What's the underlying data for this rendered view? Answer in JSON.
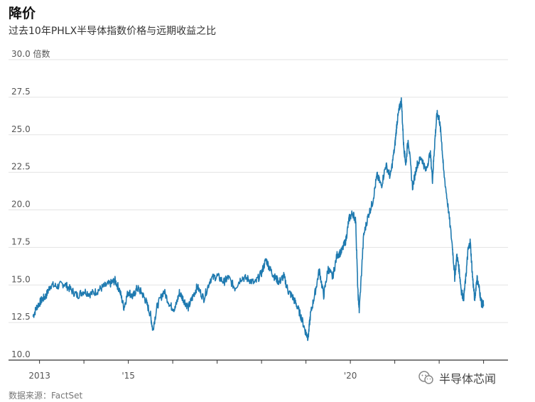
{
  "title": "降价",
  "subtitle": "过去10年PHLX半导体指数价格与远期收益之比",
  "source": "数据来源：FactSet",
  "watermark": "半导体芯闻",
  "colors": {
    "line": "#1f7ab0",
    "grid": "#e3e3e3",
    "axis": "#333333"
  },
  "chart_data": {
    "type": "line",
    "title": "降价",
    "subtitle": "过去10年PHLX半导体指数价格与远期收益之比",
    "ylabel": "倍数",
    "ylim": [
      10.0,
      30.0
    ],
    "yticks": [
      10.0,
      12.5,
      15.0,
      17.5,
      20.0,
      22.5,
      25.0,
      27.5,
      30.0
    ],
    "ytick_labels": [
      "10.0",
      "12.5",
      "15.0",
      "17.5",
      "20.0",
      "22.5",
      "25.0",
      "27.5",
      "30.0 倍数"
    ],
    "xlim": [
      2012.75,
      2023.55
    ],
    "xtick_positions": [
      2013,
      2014,
      2015,
      2016,
      2017,
      2018,
      2019,
      2020,
      2021,
      2022,
      2023
    ],
    "xtick_labels": [
      {
        "x": 2013,
        "label": "2013"
      },
      {
        "x": 2015,
        "label": "'15"
      },
      {
        "x": 2020,
        "label": "'20"
      }
    ],
    "grid": true,
    "series": [
      {
        "points": [
          [
            2012.85,
            12.9
          ],
          [
            2012.95,
            13.6
          ],
          [
            2013.05,
            14.0
          ],
          [
            2013.15,
            14.3
          ],
          [
            2013.25,
            15.0
          ],
          [
            2013.4,
            14.9
          ],
          [
            2013.55,
            15.1
          ],
          [
            2013.7,
            14.7
          ],
          [
            2013.85,
            14.3
          ],
          [
            2014.0,
            14.6
          ],
          [
            2014.15,
            14.4
          ],
          [
            2014.3,
            14.6
          ],
          [
            2014.45,
            14.9
          ],
          [
            2014.6,
            15.1
          ],
          [
            2014.7,
            15.3
          ],
          [
            2014.8,
            14.7
          ],
          [
            2014.9,
            13.5
          ],
          [
            2015.0,
            14.6
          ],
          [
            2015.1,
            14.2
          ],
          [
            2015.2,
            14.8
          ],
          [
            2015.3,
            14.5
          ],
          [
            2015.4,
            13.9
          ],
          [
            2015.5,
            13.0
          ],
          [
            2015.55,
            12.0
          ],
          [
            2015.65,
            13.6
          ],
          [
            2015.8,
            14.6
          ],
          [
            2015.95,
            13.6
          ],
          [
            2016.05,
            13.4
          ],
          [
            2016.15,
            14.5
          ],
          [
            2016.25,
            14.0
          ],
          [
            2016.35,
            13.5
          ],
          [
            2016.45,
            14.2
          ],
          [
            2016.55,
            14.9
          ],
          [
            2016.7,
            14.1
          ],
          [
            2016.85,
            15.4
          ],
          [
            2017.0,
            15.6
          ],
          [
            2017.15,
            15.2
          ],
          [
            2017.25,
            15.5
          ],
          [
            2017.4,
            14.8
          ],
          [
            2017.55,
            15.5
          ],
          [
            2017.7,
            15.4
          ],
          [
            2017.85,
            15.1
          ],
          [
            2018.0,
            15.8
          ],
          [
            2018.1,
            16.7
          ],
          [
            2018.2,
            16.0
          ],
          [
            2018.3,
            15.5
          ],
          [
            2018.4,
            15.2
          ],
          [
            2018.5,
            15.6
          ],
          [
            2018.6,
            14.6
          ],
          [
            2018.7,
            14.2
          ],
          [
            2018.8,
            13.6
          ],
          [
            2018.9,
            12.8
          ],
          [
            2019.0,
            11.8
          ],
          [
            2019.05,
            11.5
          ],
          [
            2019.1,
            13.0
          ],
          [
            2019.2,
            14.4
          ],
          [
            2019.3,
            16.0
          ],
          [
            2019.4,
            14.3
          ],
          [
            2019.5,
            16.1
          ],
          [
            2019.6,
            15.5
          ],
          [
            2019.7,
            17.0
          ],
          [
            2019.8,
            17.2
          ],
          [
            2019.9,
            18.0
          ],
          [
            2019.97,
            19.4
          ],
          [
            2020.05,
            19.8
          ],
          [
            2020.12,
            19.3
          ],
          [
            2020.17,
            14.5
          ],
          [
            2020.2,
            13.3
          ],
          [
            2020.3,
            18.3
          ],
          [
            2020.4,
            19.6
          ],
          [
            2020.5,
            20.5
          ],
          [
            2020.6,
            22.3
          ],
          [
            2020.7,
            21.6
          ],
          [
            2020.8,
            23.0
          ],
          [
            2020.9,
            22.2
          ],
          [
            2021.0,
            24.2
          ],
          [
            2021.05,
            25.8
          ],
          [
            2021.1,
            26.7
          ],
          [
            2021.15,
            27.3
          ],
          [
            2021.2,
            24.3
          ],
          [
            2021.25,
            23.0
          ],
          [
            2021.3,
            24.8
          ],
          [
            2021.4,
            21.5
          ],
          [
            2021.5,
            23.0
          ],
          [
            2021.6,
            23.5
          ],
          [
            2021.7,
            22.6
          ],
          [
            2021.8,
            23.8
          ],
          [
            2021.85,
            22.0
          ],
          [
            2021.9,
            24.5
          ],
          [
            2021.95,
            26.4
          ],
          [
            2022.0,
            26.1
          ],
          [
            2022.05,
            24.8
          ],
          [
            2022.1,
            22.6
          ],
          [
            2022.2,
            20.2
          ],
          [
            2022.3,
            17.5
          ],
          [
            2022.35,
            15.5
          ],
          [
            2022.4,
            17.0
          ],
          [
            2022.45,
            16.0
          ],
          [
            2022.5,
            14.6
          ],
          [
            2022.55,
            14.1
          ],
          [
            2022.6,
            15.5
          ],
          [
            2022.65,
            17.3
          ],
          [
            2022.7,
            17.9
          ],
          [
            2022.75,
            15.6
          ],
          [
            2022.8,
            14.0
          ],
          [
            2022.85,
            15.5
          ],
          [
            2022.9,
            14.8
          ],
          [
            2022.95,
            13.8
          ],
          [
            2023.0,
            13.7
          ]
        ]
      }
    ]
  }
}
